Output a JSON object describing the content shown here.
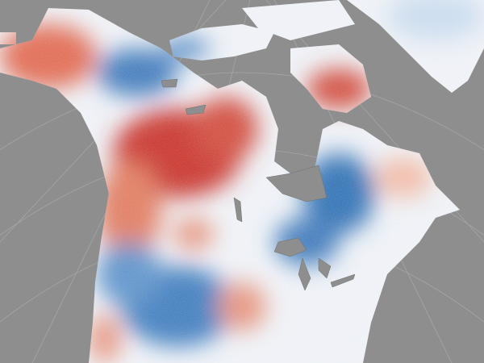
{
  "map": {
    "colors": {
      "ocean": "#8e8e8e",
      "graticule": "#a4a4a4",
      "warm_strong": "#c0282a",
      "warm": "#e9866a",
      "neutral": "#f2f4f7",
      "cool": "#8bb4dc",
      "cool_strong": "#2f6fb3",
      "lakes": "#8e8e8e"
    }
  }
}
